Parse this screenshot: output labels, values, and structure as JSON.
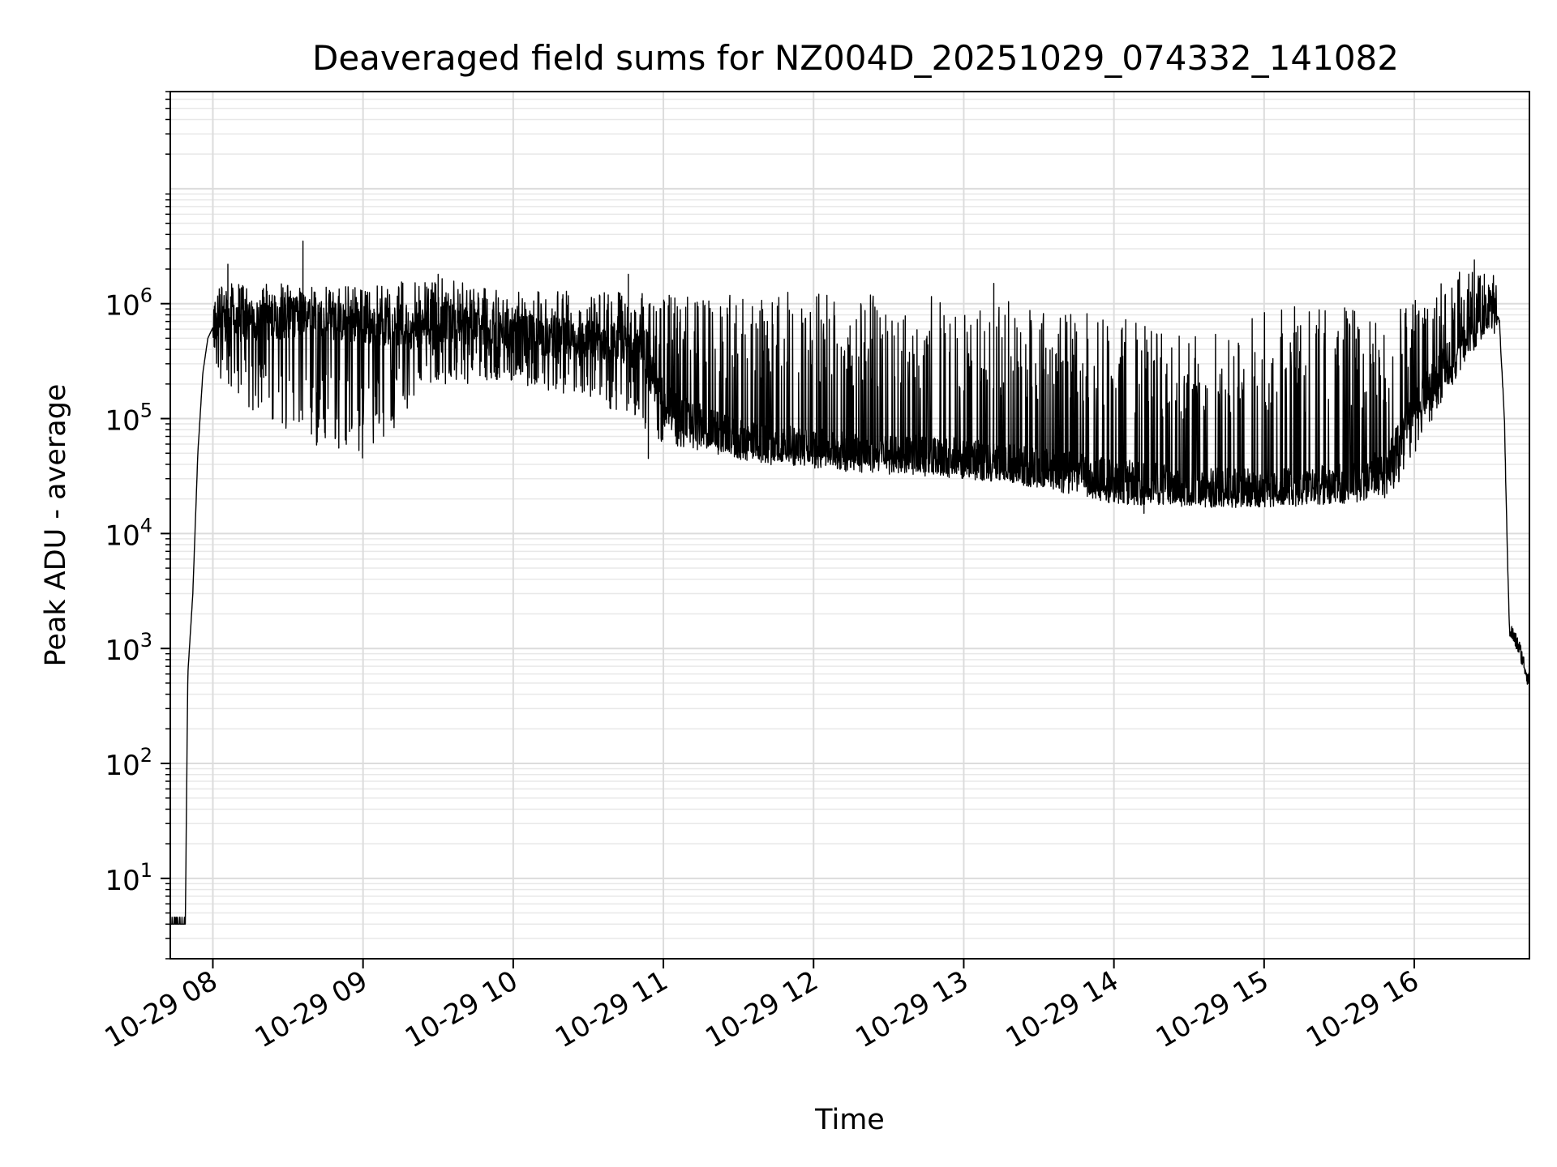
{
  "chart_data": {
    "type": "line",
    "title": "Deaveraged field sums for NZ004D_20251029_074332_141082",
    "xlabel": "Time",
    "ylabel": "Peak ADU - average",
    "yscale": "log",
    "xlim": [
      "2025-10-29 07:43",
      "2025-10-29 16:46"
    ],
    "ylim": [
      2,
      70000000
    ],
    "grid": true,
    "grid_minor": true,
    "line_color": "#000000",
    "x_ticks": [
      {
        "label": "10-29 08",
        "time": "2025-10-29 08:00"
      },
      {
        "label": "10-29 09",
        "time": "2025-10-29 09:00"
      },
      {
        "label": "10-29 10",
        "time": "2025-10-29 10:00"
      },
      {
        "label": "10-29 11",
        "time": "2025-10-29 11:00"
      },
      {
        "label": "10-29 12",
        "time": "2025-10-29 12:00"
      },
      {
        "label": "10-29 13",
        "time": "2025-10-29 13:00"
      },
      {
        "label": "10-29 14",
        "time": "2025-10-29 14:00"
      },
      {
        "label": "10-29 15",
        "time": "2025-10-29 15:00"
      },
      {
        "label": "10-29 16",
        "time": "2025-10-29 16:00"
      }
    ],
    "y_ticks": [
      {
        "base": "10",
        "exp": "1",
        "value": 10
      },
      {
        "base": "10",
        "exp": "2",
        "value": 100
      },
      {
        "base": "10",
        "exp": "3",
        "value": 1000
      },
      {
        "base": "10",
        "exp": "4",
        "value": 10000
      },
      {
        "base": "10",
        "exp": "5",
        "value": 100000
      },
      {
        "base": "10",
        "exp": "6",
        "value": 1000000
      }
    ],
    "series": [
      {
        "baseline_points": [
          [
            "2025-10-29 07:43",
            4
          ],
          [
            "2025-10-29 07:49",
            4
          ],
          [
            "2025-10-29 07:50",
            600
          ],
          [
            "2025-10-29 07:52",
            3000
          ],
          [
            "2025-10-29 07:54",
            50000
          ],
          [
            "2025-10-29 07:56",
            250000
          ],
          [
            "2025-10-29 07:58",
            500000
          ],
          [
            "2025-10-29 08:00",
            620000
          ],
          [
            "2025-10-29 08:10",
            650000
          ],
          [
            "2025-10-29 08:20",
            700000
          ],
          [
            "2025-10-29 08:30",
            750000
          ],
          [
            "2025-10-29 08:40",
            800000
          ],
          [
            "2025-10-29 08:50",
            700000
          ],
          [
            "2025-10-29 09:00",
            650000
          ],
          [
            "2025-10-29 09:10",
            650000
          ],
          [
            "2025-10-29 09:20",
            600000
          ],
          [
            "2025-10-29 09:30",
            700000
          ],
          [
            "2025-10-29 09:40",
            650000
          ],
          [
            "2025-10-29 09:50",
            600000
          ],
          [
            "2025-10-29 10:00",
            550000
          ],
          [
            "2025-10-29 10:10",
            520000
          ],
          [
            "2025-10-29 10:20",
            500000
          ],
          [
            "2025-10-29 10:30",
            480000
          ],
          [
            "2025-10-29 10:40",
            470000
          ],
          [
            "2025-10-29 10:50",
            400000
          ],
          [
            "2025-10-29 11:00",
            150000
          ],
          [
            "2025-10-29 11:10",
            100000
          ],
          [
            "2025-10-29 11:20",
            80000
          ],
          [
            "2025-10-29 11:30",
            65000
          ],
          [
            "2025-10-29 11:40",
            60000
          ],
          [
            "2025-10-29 11:50",
            58000
          ],
          [
            "2025-10-29 12:00",
            55000
          ],
          [
            "2025-10-29 12:20",
            50000
          ],
          [
            "2025-10-29 12:40",
            48000
          ],
          [
            "2025-10-29 13:00",
            45000
          ],
          [
            "2025-10-29 13:20",
            40000
          ],
          [
            "2025-10-29 13:40",
            35000
          ],
          [
            "2025-10-29 14:00",
            30000
          ],
          [
            "2025-10-29 14:20",
            27000
          ],
          [
            "2025-10-29 14:40",
            25000
          ],
          [
            "2025-10-29 15:00",
            25000
          ],
          [
            "2025-10-29 15:20",
            26000
          ],
          [
            "2025-10-29 15:40",
            28000
          ],
          [
            "2025-10-29 15:50",
            45000
          ],
          [
            "2025-10-29 16:00",
            120000
          ],
          [
            "2025-10-29 16:10",
            250000
          ],
          [
            "2025-10-29 16:20",
            500000
          ],
          [
            "2025-10-29 16:25",
            800000
          ],
          [
            "2025-10-29 16:30",
            900000
          ],
          [
            "2025-10-29 16:34",
            700000
          ],
          [
            "2025-10-29 16:36",
            100000
          ],
          [
            "2025-10-29 16:37",
            10000
          ],
          [
            "2025-10-29 16:38",
            1500
          ],
          [
            "2025-10-29 16:42",
            1000
          ],
          [
            "2025-10-29 16:46",
            500
          ]
        ],
        "noise_envelope": [
          [
            "2025-10-29 08:00",
            1500000,
            250000
          ],
          [
            "2025-10-29 08:30",
            1500000,
            60000
          ],
          [
            "2025-10-29 09:00",
            1400000,
            40000
          ],
          [
            "2025-10-29 09:30",
            1700000,
            200000
          ],
          [
            "2025-10-29 10:00",
            1300000,
            200000
          ],
          [
            "2025-10-29 10:30",
            1300000,
            150000
          ],
          [
            "2025-10-29 11:00",
            1200000,
            60000
          ],
          [
            "2025-10-29 11:30",
            1200000,
            45000
          ],
          [
            "2025-10-29 12:00",
            1300000,
            40000
          ],
          [
            "2025-10-29 12:30",
            1200000,
            38000
          ],
          [
            "2025-10-29 13:00",
            1300000,
            30000
          ],
          [
            "2025-10-29 13:30",
            900000,
            25000
          ],
          [
            "2025-10-29 14:00",
            800000,
            18000
          ],
          [
            "2025-10-29 14:30",
            500000,
            17000
          ],
          [
            "2025-10-29 15:00",
            900000,
            17000
          ],
          [
            "2025-10-29 15:30",
            1000000,
            18000
          ],
          [
            "2025-10-29 15:50",
            800000,
            20000
          ],
          [
            "2025-10-29 16:20",
            2000000,
            300000
          ],
          [
            "2025-10-29 16:30",
            1800000,
            600000
          ]
        ],
        "spikes": [
          [
            "2025-10-29 08:06",
            2200000
          ],
          [
            "2025-10-29 08:36",
            3500000
          ],
          [
            "2025-10-29 09:30",
            1800000
          ],
          [
            "2025-10-29 10:46",
            1800000
          ],
          [
            "2025-10-29 10:54",
            45000
          ],
          [
            "2025-10-29 13:12",
            1500000
          ],
          [
            "2025-10-29 14:12",
            15000
          ],
          [
            "2025-10-29 16:24",
            2400000
          ],
          [
            "2025-10-29 16:28",
            1800000
          ]
        ]
      }
    ]
  }
}
